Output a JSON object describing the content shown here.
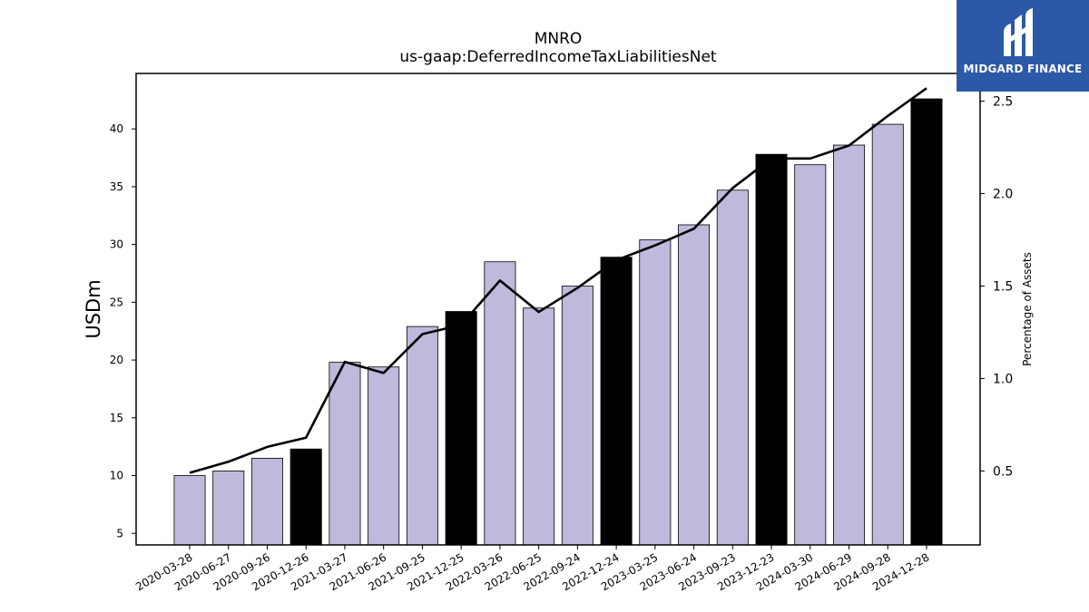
{
  "header": {
    "ticker": "MNRO",
    "metric": "us-gaap:DeferredIncomeTaxLiabilitiesNet"
  },
  "logo": {
    "text": "MIDGARD FINANCE",
    "background_color": "#2c58a8"
  },
  "chart_data": {
    "type": "bar",
    "title": "MNRO",
    "subtitle": "us-gaap:DeferredIncomeTaxLiabilitiesNet",
    "categories": [
      "2020-03-28",
      "2020-06-27",
      "2020-09-26",
      "2020-12-26",
      "2021-03-27",
      "2021-06-26",
      "2021-09-25",
      "2021-12-25",
      "2022-03-26",
      "2022-06-25",
      "2022-09-24",
      "2022-12-24",
      "2023-03-25",
      "2023-06-24",
      "2023-09-23",
      "2023-12-23",
      "2024-03-30",
      "2024-06-29",
      "2024-09-28",
      "2024-12-28"
    ],
    "series": [
      {
        "type": "bar",
        "axis": "left",
        "values": [
          10.0,
          10.4,
          11.5,
          12.3,
          19.8,
          19.4,
          22.9,
          24.2,
          28.5,
          24.5,
          26.4,
          28.9,
          30.4,
          31.7,
          34.7,
          37.8,
          36.9,
          38.6,
          40.4,
          42.6
        ],
        "highlighted": [
          false,
          false,
          false,
          true,
          false,
          false,
          false,
          true,
          false,
          false,
          false,
          true,
          false,
          false,
          false,
          true,
          false,
          false,
          false,
          true
        ],
        "color": "#bdbadb",
        "highlight_color": "#000000"
      },
      {
        "type": "line",
        "axis": "right",
        "values": [
          0.49,
          0.55,
          0.63,
          0.68,
          1.09,
          1.03,
          1.24,
          1.29,
          1.53,
          1.36,
          1.49,
          1.64,
          1.72,
          1.81,
          2.03,
          2.19,
          2.19,
          2.26,
          2.42,
          2.57
        ],
        "color": "#000000"
      }
    ],
    "ylabel": "USDm",
    "ylabel_right": "Percentage of Assets",
    "ylim": [
      4.0,
      44.8
    ],
    "ylim_right": [
      0.1,
      2.65
    ],
    "yticks": [
      5,
      10,
      15,
      20,
      25,
      30,
      35,
      40
    ],
    "yticks_right": [
      0.5,
      1.0,
      1.5,
      2.0,
      2.5
    ],
    "grid": false,
    "legend": "none"
  }
}
